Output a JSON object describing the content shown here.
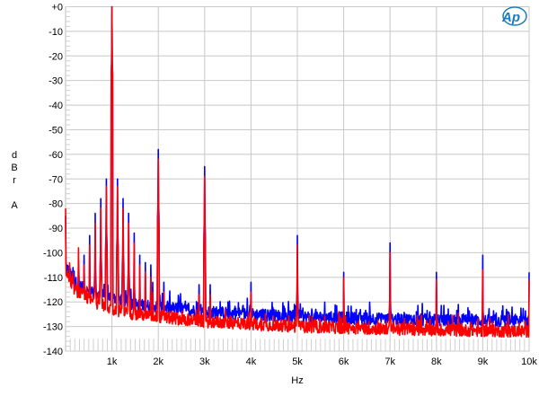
{
  "chart_data": {
    "type": "line",
    "xlabel": "Hz",
    "ylabel_letters": [
      "d",
      "B",
      "r",
      "A"
    ],
    "xlim": [
      0,
      10000
    ],
    "ylim": [
      -140,
      0
    ],
    "grid": true,
    "x_ticks": [
      {
        "v": 1000,
        "label": "1k"
      },
      {
        "v": 2000,
        "label": "2k"
      },
      {
        "v": 3000,
        "label": "3k"
      },
      {
        "v": 4000,
        "label": "4k"
      },
      {
        "v": 5000,
        "label": "5k"
      },
      {
        "v": 6000,
        "label": "6k"
      },
      {
        "v": 7000,
        "label": "7k"
      },
      {
        "v": 8000,
        "label": "8k"
      },
      {
        "v": 9000,
        "label": "9k"
      },
      {
        "v": 10000,
        "label": "10k"
      }
    ],
    "y_ticks": [
      {
        "v": 0,
        "label": "+0"
      },
      {
        "v": -10,
        "label": "-10"
      },
      {
        "v": -20,
        "label": "-20"
      },
      {
        "v": -30,
        "label": "-30"
      },
      {
        "v": -40,
        "label": "-40"
      },
      {
        "v": -50,
        "label": "-50"
      },
      {
        "v": -60,
        "label": "-60"
      },
      {
        "v": -70,
        "label": "-70"
      },
      {
        "v": -80,
        "label": "-80"
      },
      {
        "v": -90,
        "label": "-90"
      },
      {
        "v": -100,
        "label": "-100"
      },
      {
        "v": -110,
        "label": "-110"
      },
      {
        "v": -120,
        "label": "-120"
      },
      {
        "v": -130,
        "label": "-130"
      },
      {
        "v": -140,
        "label": "-140"
      }
    ],
    "logo": "AP",
    "logo_color": "#1a7bbf",
    "series": [
      {
        "color": "#0000ff",
        "peaks": [
          [
            0,
            -85
          ],
          [
            1000,
            0
          ],
          [
            2000,
            -58
          ],
          [
            3000,
            -65
          ],
          [
            4000,
            -112
          ],
          [
            5000,
            -93
          ],
          [
            6000,
            -108
          ],
          [
            7000,
            -96
          ],
          [
            8000,
            -108
          ],
          [
            9000,
            -101
          ],
          [
            10000,
            -108
          ],
          [
            880,
            -70
          ],
          [
            760,
            -78
          ],
          [
            640,
            -84
          ],
          [
            520,
            -93
          ],
          [
            400,
            -101
          ],
          [
            280,
            -103
          ],
          [
            160,
            -106
          ],
          [
            1120,
            -70
          ],
          [
            1240,
            -78
          ],
          [
            1360,
            -84
          ],
          [
            1480,
            -92
          ],
          [
            1600,
            -101
          ],
          [
            1720,
            -104
          ],
          [
            1840,
            -105
          ],
          [
            1880,
            -112
          ],
          [
            2120,
            -112
          ],
          [
            2880,
            -113
          ],
          [
            3120,
            -113
          ]
        ],
        "floor": [
          [
            0,
            -105
          ],
          [
            200,
            -112
          ],
          [
            500,
            -116
          ],
          [
            1000,
            -118
          ],
          [
            1500,
            -121
          ],
          [
            2000,
            -122
          ],
          [
            3000,
            -124
          ],
          [
            5000,
            -126
          ],
          [
            7000,
            -127
          ],
          [
            10000,
            -128
          ]
        ]
      },
      {
        "color": "#ff0000",
        "peaks": [
          [
            0,
            -82
          ],
          [
            1000,
            0
          ],
          [
            2000,
            -62
          ],
          [
            3000,
            -69
          ],
          [
            4000,
            -116
          ],
          [
            5000,
            -97
          ],
          [
            6000,
            -110
          ],
          [
            7000,
            -100
          ],
          [
            8000,
            -111
          ],
          [
            9000,
            -107
          ],
          [
            10000,
            -111
          ],
          [
            880,
            -73
          ],
          [
            760,
            -82
          ],
          [
            640,
            -88
          ],
          [
            520,
            -97
          ],
          [
            400,
            -105
          ],
          [
            280,
            -98
          ],
          [
            160,
            -108
          ],
          [
            1120,
            -73
          ],
          [
            1240,
            -82
          ],
          [
            1360,
            -88
          ],
          [
            1480,
            -96
          ],
          [
            1600,
            -105
          ],
          [
            1720,
            -108
          ],
          [
            1840,
            -110
          ],
          [
            1880,
            -116
          ],
          [
            2120,
            -116
          ],
          [
            2880,
            -117
          ],
          [
            3120,
            -117
          ]
        ],
        "floor": [
          [
            0,
            -108
          ],
          [
            200,
            -115
          ],
          [
            500,
            -119
          ],
          [
            1000,
            -123
          ],
          [
            1500,
            -125
          ],
          [
            2000,
            -126
          ],
          [
            3000,
            -128
          ],
          [
            5000,
            -130
          ],
          [
            7000,
            -131
          ],
          [
            10000,
            -132
          ]
        ]
      }
    ]
  }
}
